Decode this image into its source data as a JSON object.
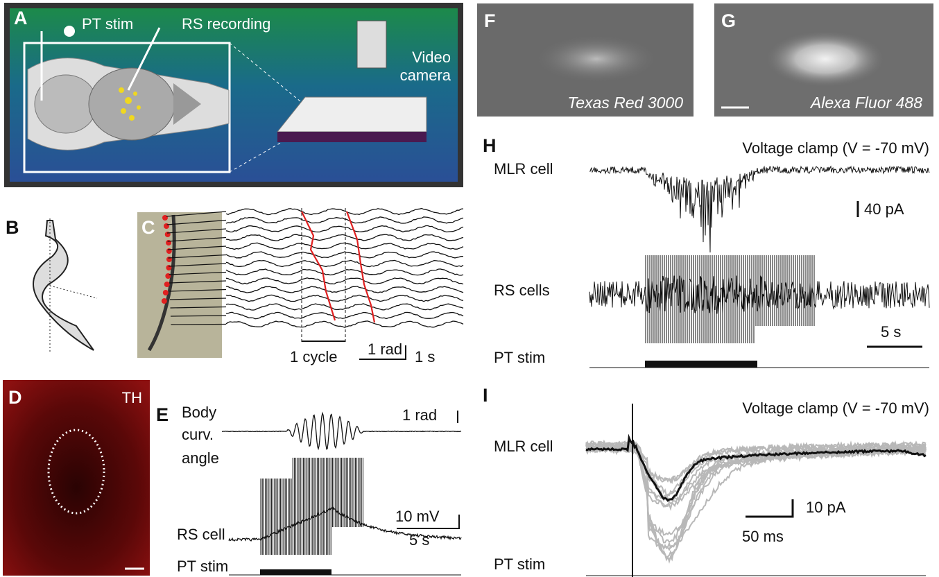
{
  "panel_a": {
    "label": "A",
    "pt_stim": "PT stim",
    "rs_recording": "RS recording",
    "video_camera": [
      "Video",
      "camera"
    ]
  },
  "panel_b": {
    "label": "B"
  },
  "panel_c": {
    "label": "C",
    "cycle": "1 cycle",
    "rad_scale": "1 rad",
    "time_scale": "1 s"
  },
  "panel_d": {
    "label": "D",
    "stain": "TH"
  },
  "panel_e": {
    "label": "E",
    "body_angle": [
      "Body",
      "curv.",
      "angle"
    ],
    "rad_scale": "1 rad",
    "mv_scale": "10 mV",
    "time_scale": "5 s",
    "rs_cell": "RS cell",
    "pt_stim": "PT stim"
  },
  "panel_f": {
    "label": "F",
    "dye": "Texas Red 3000"
  },
  "panel_g": {
    "label": "G",
    "dye": "Alexa Fluor 488"
  },
  "panel_h": {
    "label": "H",
    "title": "Voltage clamp (V = -70 mV)",
    "mlr_cell": "MLR cell",
    "pa_scale": "40 pA",
    "rs_cells": "RS cells",
    "time_scale": "5 s",
    "pt_stim": "PT stim"
  },
  "panel_i": {
    "label": "I",
    "title": "Voltage clamp (V = -70 mV)",
    "mlr_cell": "MLR cell",
    "pa_scale": "10 pA",
    "time_scale": "50 ms",
    "pt_stim": "PT stim"
  }
}
